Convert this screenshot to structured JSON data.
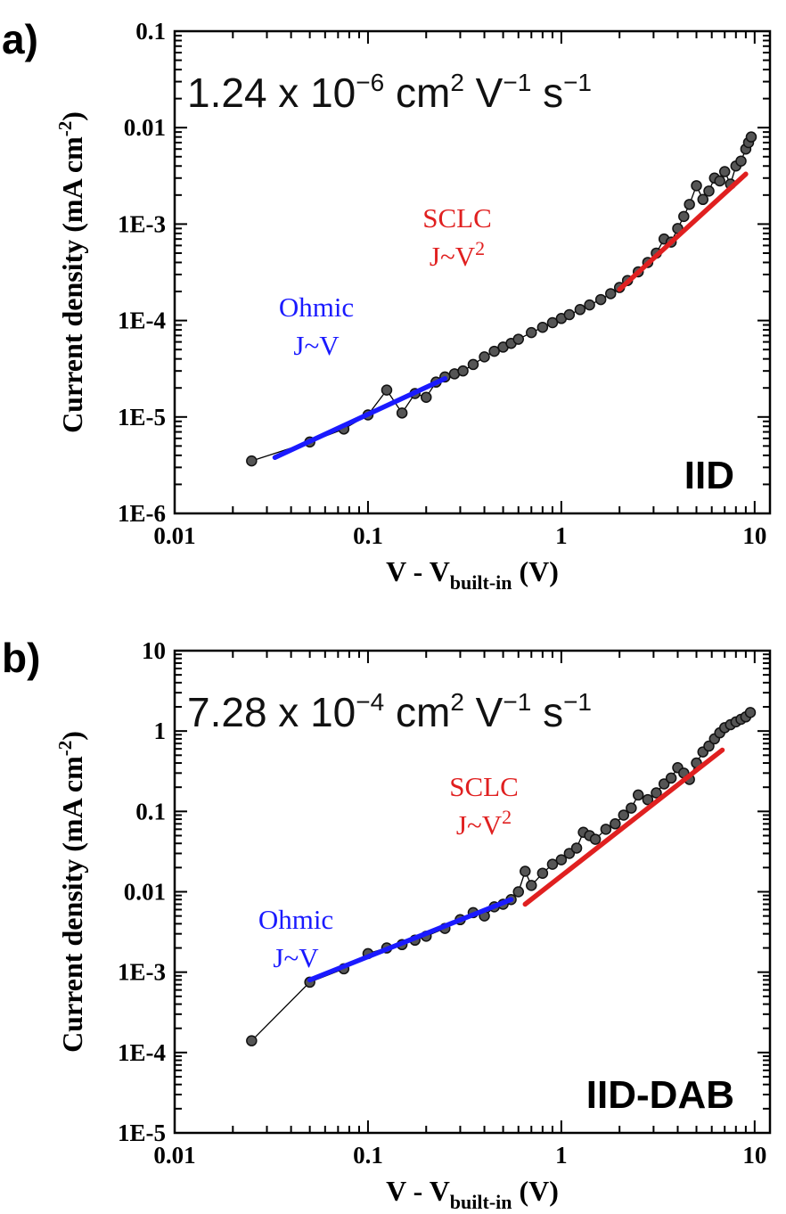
{
  "chart_data": [
    {
      "type": "scatter",
      "panel_label": "a)",
      "title": "",
      "x_scale": "log",
      "y_scale": "log",
      "xlim": [
        0.01,
        12
      ],
      "ylim": [
        1e-06,
        0.1
      ],
      "xlabel": {
        "main": "V - V",
        "sub": "built-in",
        "unit": " (V)"
      },
      "ylabel": "Current density (mA cm",
      "ylabel_sup": "-2",
      "ylabel_close": ")",
      "x_ticks": [
        {
          "value": 0.01,
          "label": "0.01"
        },
        {
          "value": 0.1,
          "label": "0.1"
        },
        {
          "value": 1,
          "label": "1"
        },
        {
          "value": 10,
          "label": "10"
        }
      ],
      "y_ticks": [
        {
          "value": 1e-06,
          "label": "1E-6"
        },
        {
          "value": 1e-05,
          "label": "1E-5"
        },
        {
          "value": 0.0001,
          "label": "1E-4"
        },
        {
          "value": 0.001,
          "label": "1E-3"
        },
        {
          "value": 0.01,
          "label": "0.01"
        },
        {
          "value": 0.1,
          "label": "0.1"
        }
      ],
      "mobility": {
        "value": "1.24 x 10",
        "exp": "−6",
        "unit1": " cm",
        "unit1_exp": "2",
        "unit2": " V",
        "unit2_exp": "−1",
        "unit3": " s",
        "unit3_exp": "−1"
      },
      "material_label": "IID",
      "ohmic_label": [
        "Ohmic",
        "J~V"
      ],
      "sclc_label": [
        "SCLC",
        "J~V",
        "2"
      ],
      "ohmic_color": "#1a1aff",
      "sclc_color": "#e02020",
      "ohmic_fit": {
        "x": [
          0.033,
          0.25
        ],
        "y": [
          3.8e-06,
          2.5e-05
        ]
      },
      "sclc_fit": {
        "x": [
          2.0,
          9.0
        ],
        "y": [
          0.00021,
          0.0033
        ]
      },
      "series": [
        {
          "x": [
            0.025,
            0.05,
            0.075,
            0.1,
            0.125,
            0.15,
            0.175,
            0.2,
            0.225,
            0.25,
            0.28,
            0.31,
            0.35,
            0.4,
            0.45,
            0.5,
            0.55,
            0.6,
            0.7,
            0.8,
            0.9,
            1.0,
            1.1,
            1.25,
            1.4,
            1.6,
            1.8,
            2.0,
            2.2,
            2.5,
            2.8,
            3.1,
            3.4,
            3.7,
            4.0,
            4.3,
            4.6,
            5.0,
            5.4,
            5.8,
            6.2,
            6.6,
            7.0,
            7.5,
            8.0,
            8.5,
            9.0,
            9.3,
            9.6
          ],
          "y": [
            3.5e-06,
            5.5e-06,
            7.5e-06,
            1.05e-05,
            1.9e-05,
            1.1e-05,
            1.75e-05,
            1.6e-05,
            2.3e-05,
            2.6e-05,
            2.8e-05,
            3e-05,
            3.5e-05,
            4.2e-05,
            4.8e-05,
            5.3e-05,
            5.8e-05,
            6.4e-05,
            7.5e-05,
            8.5e-05,
            9.5e-05,
            0.000105,
            0.000115,
            0.00013,
            0.000145,
            0.000165,
            0.00019,
            0.00022,
            0.00026,
            0.00032,
            0.0004,
            0.0005,
            0.0007,
            0.00065,
            0.0009,
            0.0012,
            0.0016,
            0.0025,
            0.0018,
            0.0022,
            0.003,
            0.0028,
            0.0035,
            0.0026,
            0.004,
            0.0045,
            0.006,
            0.007,
            0.008
          ]
        }
      ]
    },
    {
      "type": "scatter",
      "panel_label": "b)",
      "title": "",
      "x_scale": "log",
      "y_scale": "log",
      "xlim": [
        0.01,
        12
      ],
      "ylim": [
        1e-05,
        10
      ],
      "xlabel": {
        "main": "V - V",
        "sub": "built-in",
        "unit": " (V)"
      },
      "ylabel": "Current density (mA cm",
      "ylabel_sup": "-2",
      "ylabel_close": ")",
      "x_ticks": [
        {
          "value": 0.01,
          "label": "0.01"
        },
        {
          "value": 0.1,
          "label": "0.1"
        },
        {
          "value": 1,
          "label": "1"
        },
        {
          "value": 10,
          "label": "10"
        }
      ],
      "y_ticks": [
        {
          "value": 1e-05,
          "label": "1E-5"
        },
        {
          "value": 0.0001,
          "label": "1E-4"
        },
        {
          "value": 0.001,
          "label": "1E-3"
        },
        {
          "value": 0.01,
          "label": "0.01"
        },
        {
          "value": 0.1,
          "label": "0.1"
        },
        {
          "value": 1,
          "label": "1"
        },
        {
          "value": 10,
          "label": "10"
        }
      ],
      "mobility": {
        "value": "7.28 x 10",
        "exp": "−4",
        "unit1": " cm",
        "unit1_exp": "2",
        "unit2": " V",
        "unit2_exp": "−1",
        "unit3": " s",
        "unit3_exp": "−1"
      },
      "material_label": "IID-DAB",
      "ohmic_label": [
        "Ohmic",
        "J~V"
      ],
      "sclc_label": [
        "SCLC",
        "J~V",
        "2"
      ],
      "ohmic_color": "#1a1aff",
      "sclc_color": "#e02020",
      "ohmic_fit": {
        "x": [
          0.05,
          0.55
        ],
        "y": [
          0.0008,
          0.008
        ]
      },
      "sclc_fit": {
        "x": [
          0.65,
          6.8
        ],
        "y": [
          0.007,
          0.58
        ]
      },
      "series": [
        {
          "x": [
            0.025,
            0.05,
            0.075,
            0.1,
            0.125,
            0.15,
            0.175,
            0.2,
            0.25,
            0.3,
            0.35,
            0.4,
            0.45,
            0.5,
            0.55,
            0.6,
            0.65,
            0.7,
            0.8,
            0.9,
            1.0,
            1.1,
            1.2,
            1.3,
            1.4,
            1.5,
            1.7,
            1.9,
            2.1,
            2.3,
            2.5,
            2.8,
            3.1,
            3.4,
            3.7,
            4.0,
            4.3,
            4.6,
            5.0,
            5.4,
            5.8,
            6.2,
            6.6,
            7.0,
            7.5,
            8.0,
            8.5,
            9.0,
            9.5
          ],
          "y": [
            0.00014,
            0.00075,
            0.0011,
            0.0017,
            0.002,
            0.0022,
            0.0025,
            0.0028,
            0.0035,
            0.0045,
            0.0055,
            0.005,
            0.0065,
            0.007,
            0.008,
            0.01,
            0.018,
            0.012,
            0.017,
            0.022,
            0.025,
            0.03,
            0.035,
            0.055,
            0.05,
            0.045,
            0.06,
            0.07,
            0.09,
            0.11,
            0.16,
            0.14,
            0.17,
            0.22,
            0.26,
            0.35,
            0.3,
            0.25,
            0.4,
            0.55,
            0.65,
            0.8,
            0.95,
            1.1,
            1.2,
            1.3,
            1.4,
            1.5,
            1.7
          ]
        }
      ]
    }
  ]
}
